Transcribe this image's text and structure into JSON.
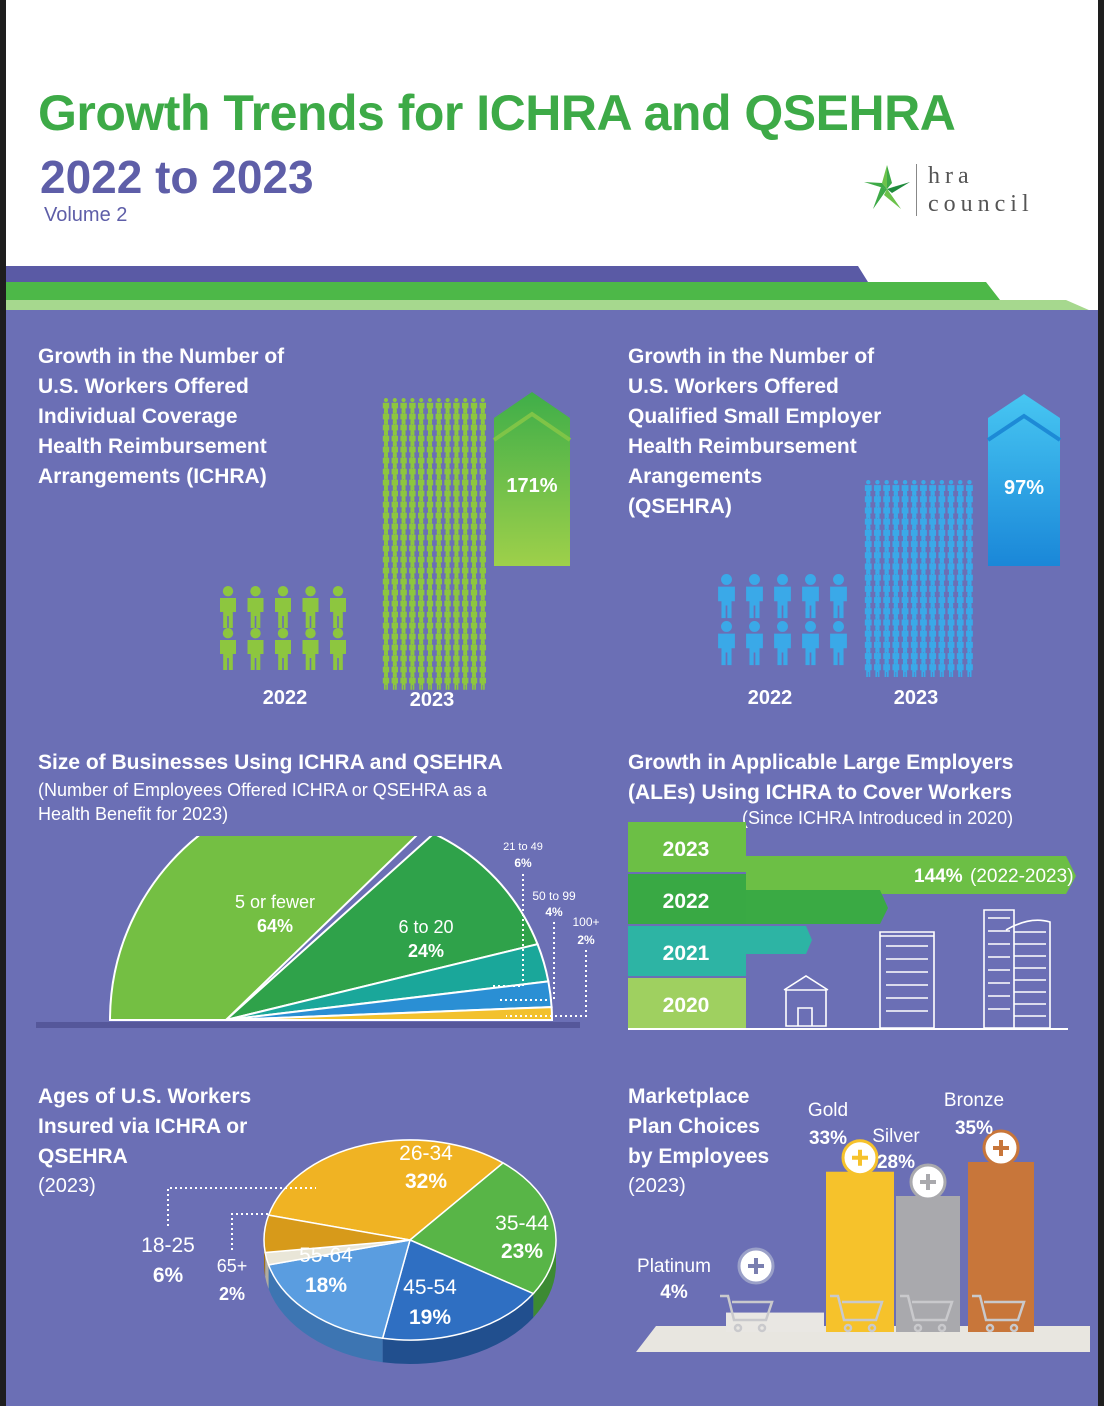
{
  "header": {
    "title": "Growth Trends for ICHRA and QSEHRA",
    "subtitle": "2022 to 2023",
    "volume": "Volume 2",
    "logo_line1": "hra",
    "logo_line2": "council"
  },
  "colors": {
    "green": "#3daa47",
    "purple_bg": "#6b6fb5",
    "title_purple": "#5e5ea8",
    "ichra_people": "#8dc63f",
    "qsehra_people": "#3aa9e8"
  },
  "sections": {
    "ichra_growth": {
      "title_lines": [
        "Growth in the Number of",
        "U.S. Workers Offered",
        "Individual Coverage",
        "Health Reimbursement",
        "Arrangements (ICHRA)"
      ]
    },
    "qsehra_growth": {
      "title_lines": [
        "Growth in the Number of",
        "U.S. Workers Offered",
        "Qualified Small Employer",
        "Health Reimbursement",
        "Arangements",
        "(QSEHRA)"
      ]
    },
    "business_size": {
      "title": "Size of Businesses Using ICHRA and QSEHRA",
      "sub_lines": [
        "(Number of Employees Offered ICHRA or QSEHRA as a",
        "Health Benefit for 2023)"
      ]
    },
    "ales": {
      "title_lines": [
        "Growth in Applicable Large Employers",
        "(ALEs) Using ICHRA to Cover Workers"
      ],
      "sub": "(Since ICHRA Introduced in 2020)"
    },
    "ages": {
      "title_lines": [
        "Ages of U.S. Workers",
        "Insured via ICHRA or",
        "QSEHRA"
      ],
      "year": "(2023)"
    },
    "marketplace": {
      "title_lines": [
        "Marketplace",
        "Plan Choices",
        "by Employees"
      ],
      "year": "(2023)"
    }
  },
  "chart_data": [
    {
      "type": "bar",
      "name": "ICHRA workers offered",
      "categories": [
        "2022",
        "2023"
      ],
      "growth_label": "171%",
      "growth_percent": 171
    },
    {
      "type": "bar",
      "name": "QSEHRA workers offered",
      "categories": [
        "2022",
        "2023"
      ],
      "growth_label": "97%",
      "growth_percent": 97
    },
    {
      "type": "pie",
      "name": "Size of businesses",
      "slices": [
        {
          "label": "5 or fewer",
          "value_label": "64%",
          "value": 64
        },
        {
          "label": "6 to 20",
          "value_label": "24%",
          "value": 24
        },
        {
          "label": "21 to 49",
          "value_label": "6%",
          "value": 6
        },
        {
          "label": "50 to 99",
          "value_label": "4%",
          "value": 4
        },
        {
          "label": "100+",
          "value_label": "2%",
          "value": 2
        }
      ]
    },
    {
      "type": "bar",
      "name": "ALE growth",
      "categories": [
        "2023",
        "2022",
        "2021",
        "2020"
      ],
      "annotation_value": "144%",
      "annotation_range": "(2022-2023)",
      "growth_percent": 144
    },
    {
      "type": "pie",
      "name": "Ages of workers",
      "slices": [
        {
          "label": "26-34",
          "value_label": "32%",
          "value": 32
        },
        {
          "label": "35-44",
          "value_label": "23%",
          "value": 23
        },
        {
          "label": "45-54",
          "value_label": "19%",
          "value": 19
        },
        {
          "label": "55-64",
          "value_label": "18%",
          "value": 18
        },
        {
          "label": "65+",
          "value_label": "2%",
          "value": 2
        },
        {
          "label": "18-25",
          "value_label": "6%",
          "value": 6
        }
      ]
    },
    {
      "type": "bar",
      "name": "Marketplace plan choices",
      "categories": [
        "Platinum",
        "Gold",
        "Silver",
        "Bronze"
      ],
      "values": [
        4,
        33,
        28,
        35
      ],
      "value_labels": [
        "4%",
        "33%",
        "28%",
        "35%"
      ]
    }
  ]
}
